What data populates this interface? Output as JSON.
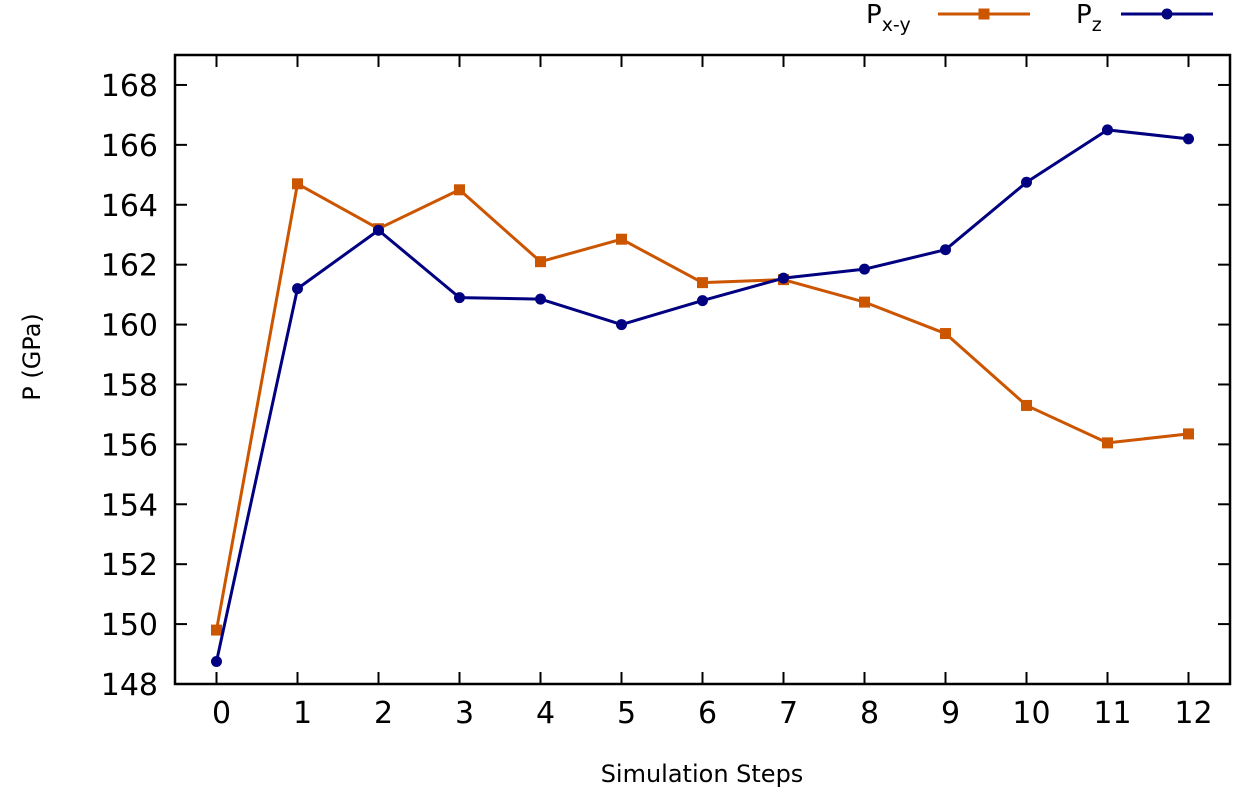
{
  "chart_data": {
    "type": "line",
    "xlabel": "Simulation Steps",
    "ylabel": "P (GPa)",
    "x": [
      0,
      1,
      2,
      3,
      4,
      5,
      6,
      7,
      8,
      9,
      10,
      11,
      12
    ],
    "xlim": [
      -0.5,
      12.3
    ],
    "ylim": [
      148,
      169
    ],
    "xticks": [
      0,
      1,
      2,
      3,
      4,
      5,
      6,
      7,
      8,
      9,
      10,
      11,
      12
    ],
    "yticks": [
      148,
      150,
      152,
      154,
      156,
      158,
      160,
      162,
      164,
      166,
      168
    ],
    "grid": false,
    "legend_position": "top-right, above plot",
    "series": [
      {
        "name": "P",
        "subscript": "x-y",
        "color": "#cc5500",
        "marker": "square",
        "line": "solid",
        "values": [
          149.8,
          164.7,
          163.2,
          164.5,
          162.1,
          162.85,
          161.4,
          161.5,
          160.75,
          159.7,
          157.3,
          156.05,
          156.35
        ]
      },
      {
        "name": "P",
        "subscript": "z",
        "color": "#000080",
        "marker": "circle",
        "line": "solid",
        "values": [
          148.75,
          161.2,
          163.15,
          160.9,
          160.85,
          160.0,
          160.8,
          161.55,
          161.85,
          162.5,
          164.75,
          166.5,
          166.2
        ]
      }
    ]
  }
}
